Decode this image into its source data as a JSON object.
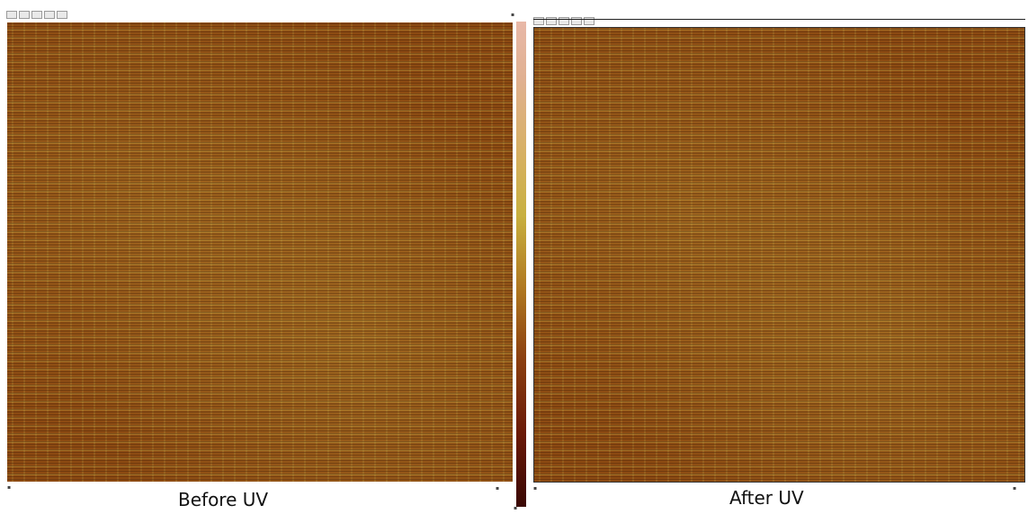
{
  "panels": [
    {
      "id": "before",
      "caption": "Before UV"
    },
    {
      "id": "after",
      "caption": "After UV"
    }
  ],
  "colors": {
    "afm_base": "#8c4a12",
    "afm_highlight": "#c4a844",
    "scale_top": "#e8b8a8",
    "scale_bottom": "#3a0804"
  }
}
